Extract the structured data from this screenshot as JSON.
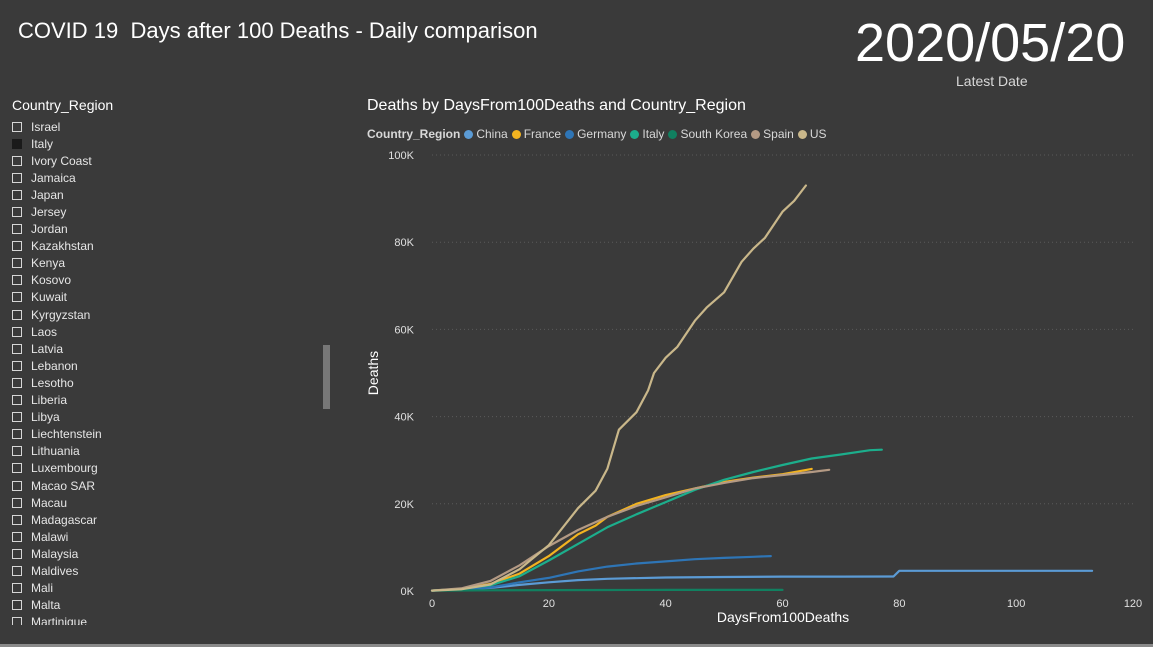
{
  "header": {
    "title": "COVID 19  Days after 100 Deaths - Daily comparison",
    "latest_date": "2020/05/20",
    "latest_date_label": "Latest Date"
  },
  "slicer": {
    "title": "Country_Region",
    "items": [
      {
        "label": "Israel",
        "checked": false
      },
      {
        "label": "Italy",
        "checked": true
      },
      {
        "label": "Ivory Coast",
        "checked": false
      },
      {
        "label": "Jamaica",
        "checked": false
      },
      {
        "label": "Japan",
        "checked": false
      },
      {
        "label": "Jersey",
        "checked": false
      },
      {
        "label": "Jordan",
        "checked": false
      },
      {
        "label": "Kazakhstan",
        "checked": false
      },
      {
        "label": "Kenya",
        "checked": false
      },
      {
        "label": "Kosovo",
        "checked": false
      },
      {
        "label": "Kuwait",
        "checked": false
      },
      {
        "label": "Kyrgyzstan",
        "checked": false
      },
      {
        "label": "Laos",
        "checked": false
      },
      {
        "label": "Latvia",
        "checked": false
      },
      {
        "label": "Lebanon",
        "checked": false
      },
      {
        "label": "Lesotho",
        "checked": false
      },
      {
        "label": "Liberia",
        "checked": false
      },
      {
        "label": "Libya",
        "checked": false
      },
      {
        "label": "Liechtenstein",
        "checked": false
      },
      {
        "label": "Lithuania",
        "checked": false
      },
      {
        "label": "Luxembourg",
        "checked": false
      },
      {
        "label": "Macao SAR",
        "checked": false
      },
      {
        "label": "Macau",
        "checked": false
      },
      {
        "label": "Madagascar",
        "checked": false
      },
      {
        "label": "Malawi",
        "checked": false
      },
      {
        "label": "Malaysia",
        "checked": false
      },
      {
        "label": "Maldives",
        "checked": false
      },
      {
        "label": "Mali",
        "checked": false
      },
      {
        "label": "Malta",
        "checked": false
      },
      {
        "label": "Martinique",
        "checked": false
      }
    ]
  },
  "chart_data": {
    "type": "line",
    "title": "Deaths by DaysFrom100Deaths and Country_Region",
    "xlabel": "DaysFrom100Deaths",
    "ylabel": "Deaths",
    "legend_title": "Country_Region",
    "legend_position": "top-left",
    "grid": true,
    "xlim": [
      0,
      120
    ],
    "ylim": [
      0,
      100000
    ],
    "x_ticks": [
      "0",
      "20",
      "40",
      "60",
      "80",
      "100",
      "120"
    ],
    "y_ticks": [
      "0K",
      "20K",
      "40K",
      "60K",
      "80K",
      "100K"
    ],
    "series": [
      {
        "name": "China",
        "color": "#5b9bd5",
        "points": [
          [
            0,
            100
          ],
          [
            5,
            300
          ],
          [
            10,
            700
          ],
          [
            15,
            1400
          ],
          [
            20,
            2000
          ],
          [
            25,
            2500
          ],
          [
            30,
            2800
          ],
          [
            40,
            3100
          ],
          [
            50,
            3200
          ],
          [
            60,
            3300
          ],
          [
            70,
            3300
          ],
          [
            79,
            3330
          ],
          [
            80,
            4630
          ],
          [
            90,
            4640
          ],
          [
            100,
            4640
          ],
          [
            113,
            4640
          ]
        ]
      },
      {
        "name": "France",
        "color": "#f2b320",
        "points": [
          [
            0,
            100
          ],
          [
            5,
            500
          ],
          [
            10,
            1600
          ],
          [
            15,
            4000
          ],
          [
            20,
            8000
          ],
          [
            25,
            13000
          ],
          [
            28,
            15000
          ],
          [
            30,
            17000
          ],
          [
            35,
            20000
          ],
          [
            40,
            22000
          ],
          [
            45,
            23500
          ],
          [
            50,
            25000
          ],
          [
            55,
            26000
          ],
          [
            60,
            26800
          ],
          [
            63,
            27500
          ],
          [
            65,
            28000
          ]
        ]
      },
      {
        "name": "Germany",
        "color": "#2e75b6",
        "points": [
          [
            0,
            100
          ],
          [
            5,
            300
          ],
          [
            10,
            800
          ],
          [
            15,
            2000
          ],
          [
            20,
            3000
          ],
          [
            25,
            4500
          ],
          [
            30,
            5600
          ],
          [
            35,
            6300
          ],
          [
            40,
            6800
          ],
          [
            45,
            7300
          ],
          [
            50,
            7600
          ],
          [
            55,
            7850
          ],
          [
            58,
            8000
          ]
        ]
      },
      {
        "name": "Italy",
        "color": "#1cae8c",
        "points": [
          [
            0,
            100
          ],
          [
            5,
            500
          ],
          [
            10,
            1300
          ],
          [
            15,
            3400
          ],
          [
            20,
            7000
          ],
          [
            25,
            10800
          ],
          [
            30,
            14600
          ],
          [
            35,
            17600
          ],
          [
            40,
            20400
          ],
          [
            45,
            23200
          ],
          [
            50,
            25500
          ],
          [
            55,
            27300
          ],
          [
            60,
            28900
          ],
          [
            65,
            30400
          ],
          [
            70,
            31300
          ],
          [
            75,
            32300
          ],
          [
            77,
            32400
          ]
        ]
      },
      {
        "name": "South Korea",
        "color": "#118060",
        "points": [
          [
            0,
            100
          ],
          [
            10,
            150
          ],
          [
            20,
            200
          ],
          [
            30,
            230
          ],
          [
            40,
            250
          ],
          [
            50,
            260
          ],
          [
            60,
            263
          ]
        ]
      },
      {
        "name": "Spain",
        "color": "#b49a84",
        "points": [
          [
            0,
            100
          ],
          [
            5,
            600
          ],
          [
            10,
            2300
          ],
          [
            15,
            5900
          ],
          [
            20,
            10300
          ],
          [
            25,
            14000
          ],
          [
            30,
            17000
          ],
          [
            35,
            19500
          ],
          [
            40,
            21500
          ],
          [
            45,
            23500
          ],
          [
            50,
            24800
          ],
          [
            55,
            25900
          ],
          [
            60,
            26600
          ],
          [
            65,
            27300
          ],
          [
            68,
            27800
          ]
        ]
      },
      {
        "name": "US",
        "color": "#c9b78a",
        "points": [
          [
            0,
            100
          ],
          [
            5,
            400
          ],
          [
            10,
            1500
          ],
          [
            15,
            5000
          ],
          [
            20,
            10500
          ],
          [
            25,
            19000
          ],
          [
            28,
            23000
          ],
          [
            30,
            28000
          ],
          [
            32,
            37000
          ],
          [
            35,
            41000
          ],
          [
            37,
            46000
          ],
          [
            38,
            50000
          ],
          [
            40,
            53500
          ],
          [
            42,
            56000
          ],
          [
            45,
            62000
          ],
          [
            47,
            65000
          ],
          [
            50,
            68500
          ],
          [
            53,
            75500
          ],
          [
            55,
            78500
          ],
          [
            57,
            81000
          ],
          [
            60,
            87000
          ],
          [
            62,
            89500
          ],
          [
            64,
            93000
          ]
        ]
      }
    ]
  }
}
